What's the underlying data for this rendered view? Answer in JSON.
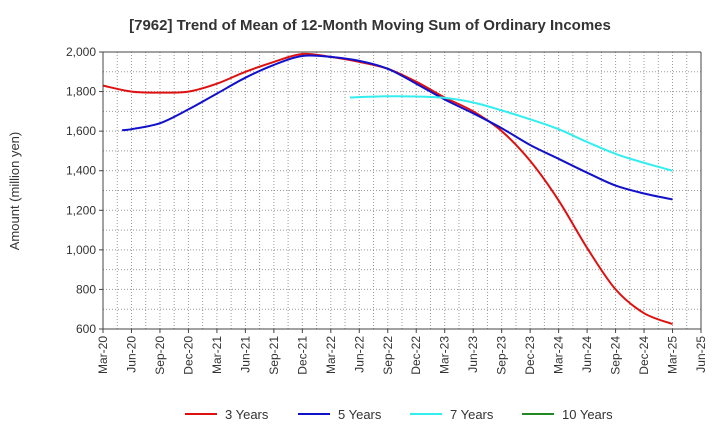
{
  "chart_data": {
    "type": "line",
    "title": "[7962]  Trend of Mean of 12-Month Moving Sum of Ordinary Incomes",
    "xlabel": "",
    "ylabel": "Amount (million yen)",
    "ylim": [
      600,
      2000
    ],
    "yticks": [
      600,
      800,
      1000,
      1200,
      1400,
      1600,
      1800,
      2000
    ],
    "ytick_labels": [
      "600",
      "800",
      "1,000",
      "1,200",
      "1,400",
      "1,600",
      "1,800",
      "2,000"
    ],
    "x_tick_labels": [
      "Mar-20",
      "Jun-20",
      "Sep-20",
      "Dec-20",
      "Mar-21",
      "Jun-21",
      "Sep-21",
      "Dec-21",
      "Mar-22",
      "Jun-22",
      "Sep-22",
      "Dec-22",
      "Mar-23",
      "Jun-23",
      "Sep-23",
      "Dec-23",
      "Mar-24",
      "Jun-24",
      "Sep-24",
      "Dec-24",
      "Mar-25",
      "Jun-25"
    ],
    "grid": true,
    "legend_position": "bottom",
    "series": [
      {
        "name": "3 Years",
        "color": "#dd1111",
        "points": [
          [
            0,
            1830
          ],
          [
            1,
            1800
          ],
          [
            2,
            1795
          ],
          [
            3,
            1800
          ],
          [
            4,
            1840
          ],
          [
            5,
            1900
          ],
          [
            6,
            1950
          ],
          [
            7,
            1990
          ],
          [
            8,
            1975
          ],
          [
            9,
            1950
          ],
          [
            10,
            1915
          ],
          [
            11,
            1850
          ],
          [
            12,
            1770
          ],
          [
            13,
            1700
          ],
          [
            14,
            1600
          ],
          [
            15,
            1450
          ],
          [
            16,
            1250
          ],
          [
            17,
            1010
          ],
          [
            18,
            800
          ],
          [
            19,
            680
          ],
          [
            20,
            625
          ]
        ]
      },
      {
        "name": "5 Years",
        "color": "#1111cc",
        "points": [
          [
            0.67,
            1605
          ],
          [
            1,
            1610
          ],
          [
            2,
            1640
          ],
          [
            3,
            1710
          ],
          [
            4,
            1790
          ],
          [
            5,
            1870
          ],
          [
            6,
            1935
          ],
          [
            7,
            1980
          ],
          [
            8,
            1975
          ],
          [
            9,
            1955
          ],
          [
            10,
            1915
          ],
          [
            11,
            1840
          ],
          [
            12,
            1760
          ],
          [
            13,
            1690
          ],
          [
            14,
            1615
          ],
          [
            15,
            1530
          ],
          [
            16,
            1460
          ],
          [
            17,
            1390
          ],
          [
            18,
            1325
          ],
          [
            19,
            1285
          ],
          [
            20,
            1255
          ]
        ]
      },
      {
        "name": "7 Years",
        "color": "#33eeee",
        "points": [
          [
            8.67,
            1770
          ],
          [
            9,
            1772
          ],
          [
            10,
            1776
          ],
          [
            11,
            1775
          ],
          [
            12,
            1768
          ],
          [
            13,
            1745
          ],
          [
            14,
            1705
          ],
          [
            15,
            1660
          ],
          [
            16,
            1610
          ],
          [
            17,
            1545
          ],
          [
            18,
            1485
          ],
          [
            19,
            1440
          ],
          [
            20,
            1400
          ]
        ]
      },
      {
        "name": "10 Years",
        "color": "#228822",
        "points": []
      }
    ]
  }
}
